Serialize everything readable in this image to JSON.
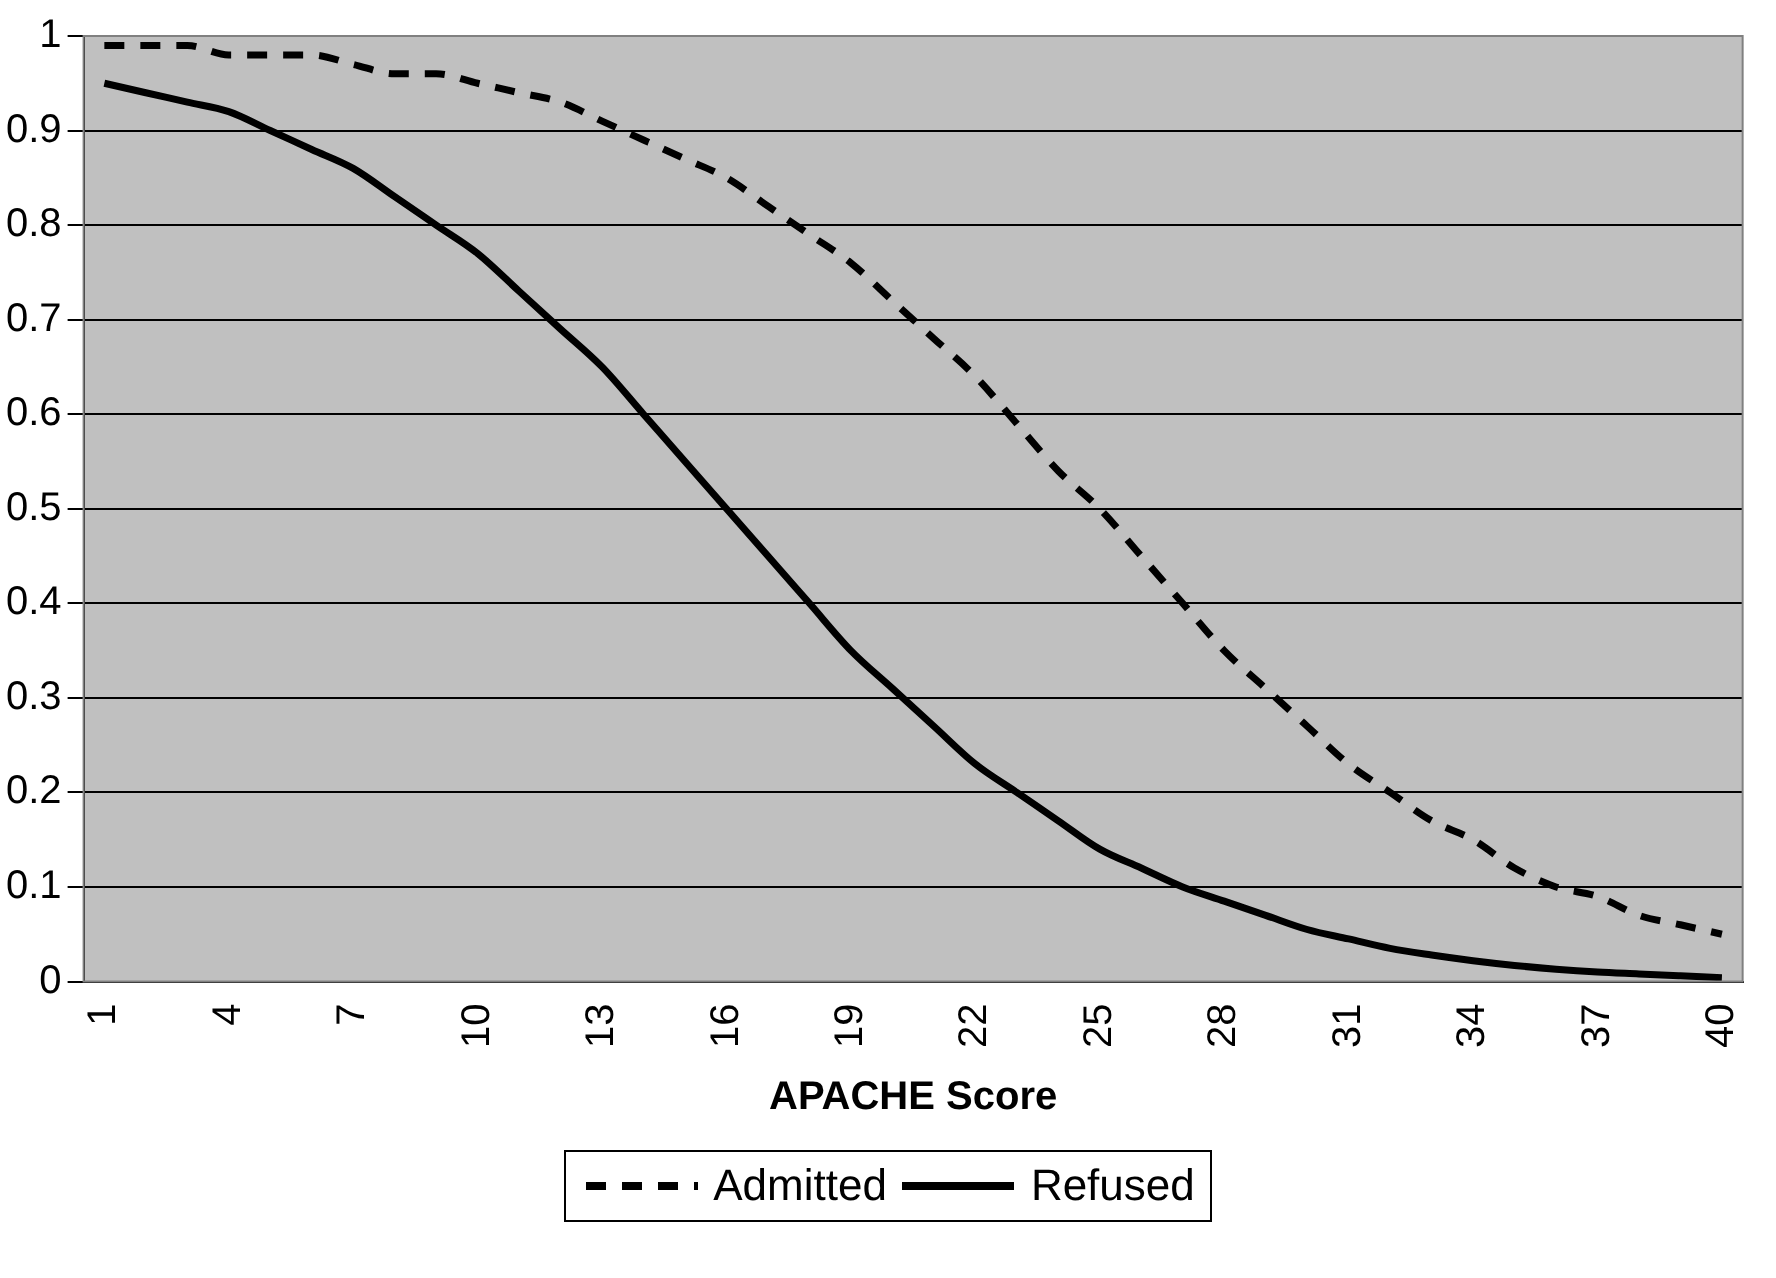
{
  "chart_data": {
    "type": "line",
    "xlabel": "APACHE Score",
    "categories": [
      "1",
      null,
      null,
      "4",
      null,
      null,
      "7",
      null,
      null,
      "10",
      null,
      null,
      "13",
      null,
      null,
      "16",
      null,
      null,
      "19",
      null,
      null,
      "22",
      null,
      null,
      "25",
      null,
      null,
      "28",
      null,
      null,
      "31",
      null,
      null,
      "34",
      null,
      null,
      "37",
      null,
      null,
      "40"
    ],
    "series": [
      {
        "name": "Admitted",
        "color": "#000000",
        "line_style": "dashed",
        "values": [
          0.99,
          0.99,
          0.99,
          0.98,
          0.98,
          0.98,
          0.97,
          0.96,
          0.96,
          0.95,
          0.94,
          0.93,
          0.91,
          0.89,
          0.87,
          0.85,
          0.82,
          0.79,
          0.76,
          0.72,
          0.68,
          0.64,
          0.59,
          0.54,
          0.5,
          0.45,
          0.4,
          0.35,
          0.31,
          0.27,
          0.23,
          0.2,
          0.17,
          0.15,
          0.12,
          0.1,
          0.09,
          0.07,
          0.06,
          0.05
        ]
      },
      {
        "name": "Refused",
        "color": "#000000",
        "line_style": "solid",
        "values": [
          0.95,
          0.94,
          0.93,
          0.92,
          0.9,
          0.88,
          0.86,
          0.83,
          0.8,
          0.77,
          0.73,
          0.69,
          0.65,
          0.6,
          0.55,
          0.5,
          0.45,
          0.4,
          0.35,
          0.31,
          0.27,
          0.23,
          0.2,
          0.17,
          0.14,
          0.12,
          0.1,
          0.085,
          0.07,
          0.055,
          0.045,
          0.035,
          0.028,
          0.022,
          0.017,
          0.013,
          0.01,
          0.008,
          0.006,
          0.004
        ]
      }
    ],
    "ylim": [
      0,
      1
    ],
    "yticks": [
      0,
      0.1,
      0.2,
      0.3,
      0.4,
      0.5,
      0.6,
      0.7,
      0.8,
      0.9,
      1
    ],
    "grid": "y",
    "legend": "bottom",
    "marker": "none"
  }
}
